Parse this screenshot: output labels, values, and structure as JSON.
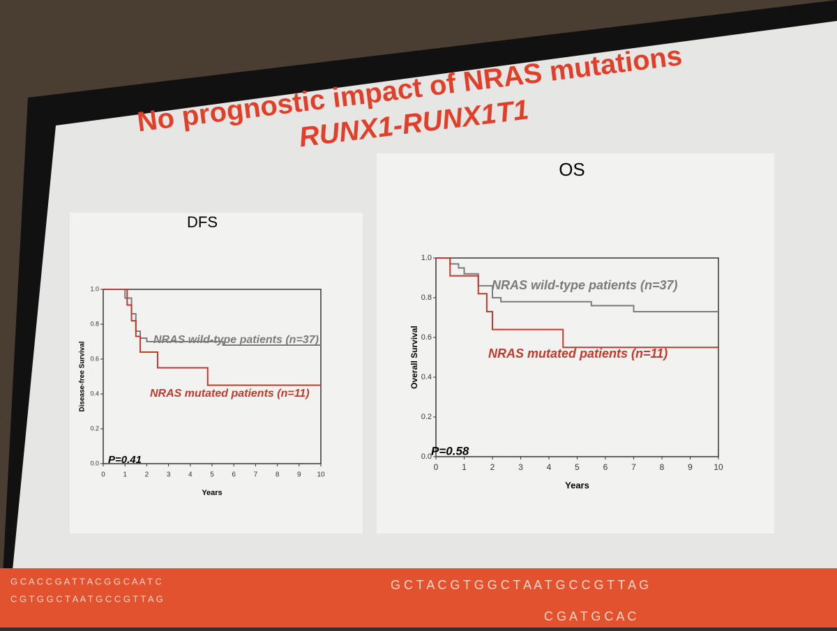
{
  "title_lines": [
    "No prognostic impact of NRAS mutations",
    "RUNX1-RUNX1T1"
  ],
  "footer_sequences": [
    "G C A C C G A T T A C G G C A A T C",
    "C G T G G C T A A T G C C G T T A G",
    "G C T A C G T G G C T A A T G C C G T T A G",
    "C G A T G C A C"
  ],
  "chart_data": [
    {
      "type": "step",
      "title": "DFS",
      "xlabel": "Years",
      "ylabel": "Disease-free Survival",
      "annotation": "P=0.41",
      "xlim": [
        0,
        10
      ],
      "xticks": [
        0,
        1,
        2,
        3,
        4,
        5,
        6,
        7,
        8,
        9,
        10
      ],
      "ylim": [
        0,
        1
      ],
      "yticks": [
        {
          "value": 0,
          "label": "0.0"
        },
        0.2,
        0.4,
        0.6,
        0.8,
        {
          "value": 1,
          "label": "1.0"
        }
      ],
      "series": [
        {
          "name": "NRAS wild-type patients (n=37)",
          "color": "#7a7a7a",
          "x": [
            0,
            1,
            1.3,
            1.5,
            1.7,
            2,
            5.5,
            10
          ],
          "values": [
            1,
            0.95,
            0.86,
            0.76,
            0.72,
            0.7,
            0.68,
            0.68
          ]
        },
        {
          "name": "NRAS mutated patients (n=11)",
          "color": "#c0392b",
          "x": [
            0,
            1.1,
            1.3,
            1.5,
            1.7,
            2.5,
            4.8,
            10
          ],
          "values": [
            1,
            0.91,
            0.82,
            0.73,
            0.64,
            0.55,
            0.45,
            0.45
          ]
        }
      ]
    },
    {
      "type": "step",
      "title": "OS",
      "xlabel": "Years",
      "ylabel": "Overall Survival",
      "annotation": "P=0.58",
      "xlim": [
        0,
        10
      ],
      "xticks": [
        0,
        1,
        2,
        3,
        4,
        5,
        6,
        7,
        8,
        9,
        10
      ],
      "ylim": [
        0,
        1
      ],
      "yticks": [
        {
          "value": 0,
          "label": "0.0"
        },
        0.2,
        0.4,
        0.6,
        0.8,
        {
          "value": 1,
          "label": "1.0"
        }
      ],
      "series": [
        {
          "name": "NRAS wild-type patients (n=37)",
          "color": "#7a7a7a",
          "x": [
            0,
            0.5,
            0.8,
            1,
            1.5,
            2,
            2.3,
            5.5,
            7,
            10
          ],
          "values": [
            1,
            0.97,
            0.95,
            0.92,
            0.86,
            0.8,
            0.78,
            0.76,
            0.73,
            0.73
          ]
        },
        {
          "name": "NRAS mutated patients (n=11)",
          "color": "#c0392b",
          "x": [
            0,
            0.5,
            0.8,
            1.5,
            1.8,
            2,
            4.5,
            10
          ],
          "values": [
            1,
            0.91,
            0.91,
            0.82,
            0.73,
            0.64,
            0.55,
            0.55
          ]
        }
      ]
    }
  ]
}
